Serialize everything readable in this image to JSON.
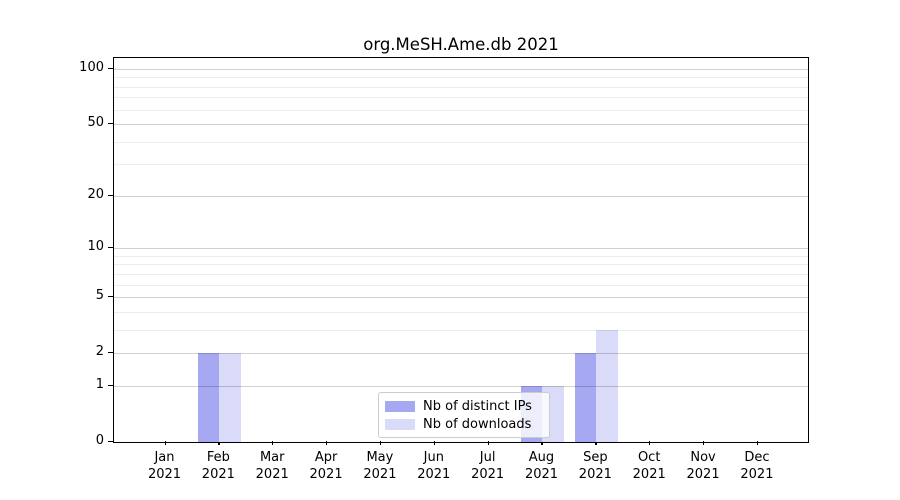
{
  "chart_data": {
    "type": "bar",
    "title": "org.MeSH.Ame.db 2021",
    "x_tick_months": [
      "Jan",
      "Feb",
      "Mar",
      "Apr",
      "May",
      "Jun",
      "Jul",
      "Aug",
      "Sep",
      "Oct",
      "Nov",
      "Dec"
    ],
    "x_tick_year": "2021",
    "series": [
      {
        "name": "Nb of distinct IPs",
        "color": "#a6a8f1",
        "values": [
          0,
          2,
          0,
          0,
          0,
          0,
          0,
          1,
          2,
          0,
          0,
          0
        ]
      },
      {
        "name": "Nb of downloads",
        "color": "#d9dbf8",
        "values": [
          0,
          2,
          0,
          0,
          0,
          0,
          0,
          1,
          3,
          0,
          0,
          0
        ]
      }
    ],
    "yscale": "log1p",
    "ylim": [
      0,
      117
    ],
    "yticks_major": [
      0,
      1,
      2,
      5,
      10,
      20,
      50,
      100
    ],
    "ytick_labels": [
      "0",
      "1",
      "2",
      "5",
      "10",
      "20",
      "50",
      "100"
    ],
    "yticks_minor": [
      3,
      4,
      6,
      7,
      8,
      9,
      30,
      40,
      60,
      70,
      80,
      90
    ],
    "grid": "horizontal gridlines drawn above bars",
    "legend_position": "inside bottom center",
    "bar_layout": "paired bars per month, IPs left of tick center, downloads right"
  }
}
